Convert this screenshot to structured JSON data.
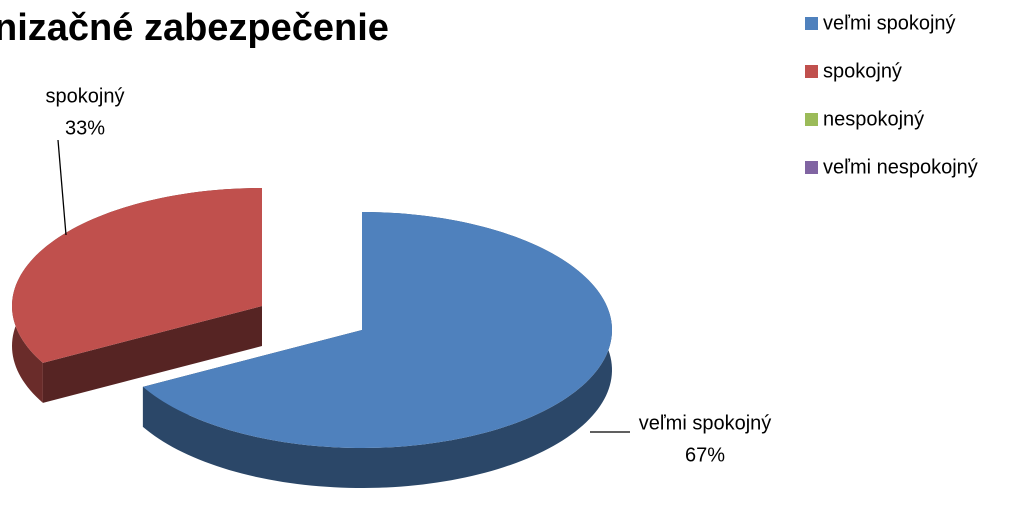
{
  "chart_data": {
    "type": "pie3d",
    "title": "nizačné zabezpečenie",
    "categories": [
      "veľmi spokojný",
      "spokojný",
      "nespokojný",
      "veľmi nespokojný"
    ],
    "values": [
      67,
      33,
      0,
      0
    ],
    "value_labels": [
      "67%",
      "33%",
      null,
      null
    ],
    "colors": [
      "#4f81bd",
      "#c0504d",
      "#9bbb59",
      "#8064a2"
    ],
    "legend": "right"
  }
}
